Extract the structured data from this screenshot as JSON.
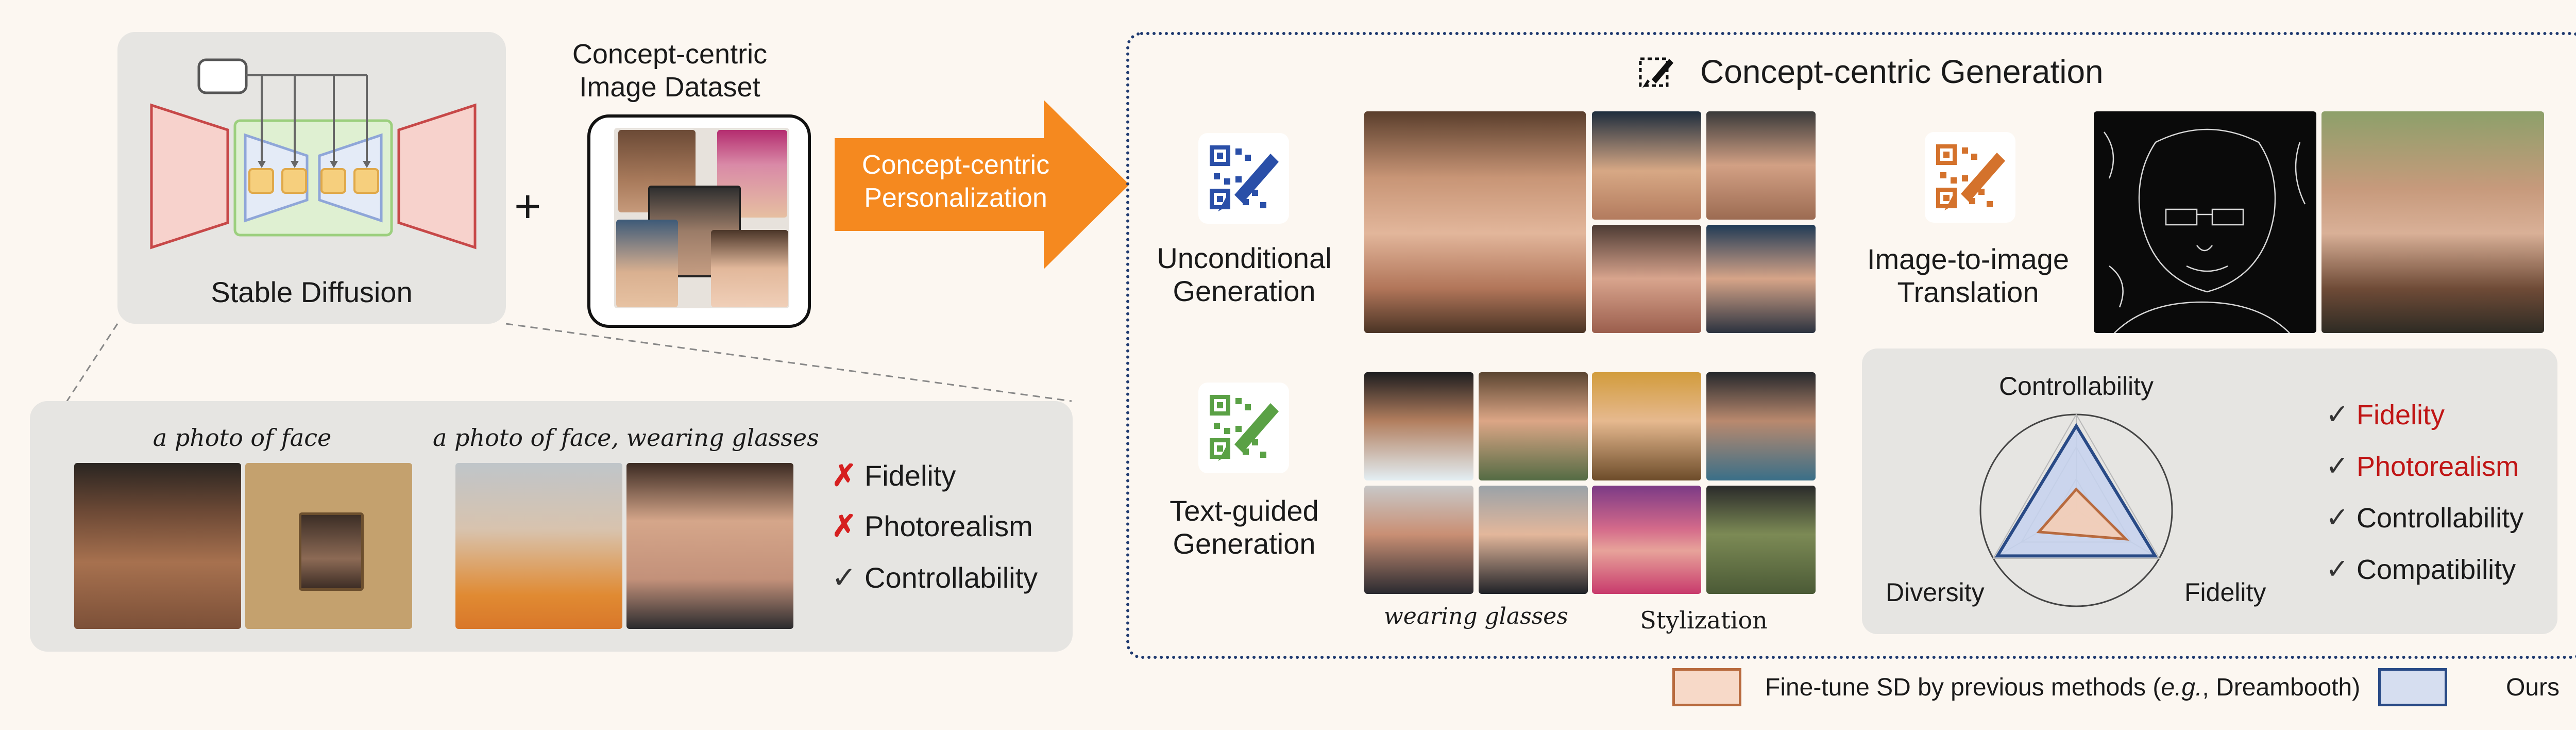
{
  "left": {
    "stable_diffusion_label": "Stable Diffusion",
    "plus_sign": "+",
    "dataset_title_line1": "Concept-centric",
    "dataset_title_line2": "Image Dataset",
    "arrow_line1": "Concept-centric",
    "arrow_line2": "Personalization",
    "bottom_panel": {
      "caption_face": "a photo of face",
      "caption_glasses": "a photo of face, wearing glasses",
      "items": [
        {
          "mark": "✗",
          "label": "Fidelity"
        },
        {
          "mark": "✗",
          "label": "Photorealism"
        },
        {
          "mark": "✓",
          "label": "Controllability"
        }
      ]
    }
  },
  "right": {
    "title": "Concept-centric Generation",
    "unconditional_line1": "Unconditional",
    "unconditional_line2": "Generation",
    "text_guided_line1": "Text-guided",
    "text_guided_line2": "Generation",
    "i2i_line1": "Image-to-image",
    "i2i_line2": "Translation",
    "caption_glasses": "wearing glasses",
    "caption_stylization": "Stylization",
    "radar": {
      "axes": [
        "Controllability",
        "Diversity",
        "Fidelity"
      ],
      "series": [
        {
          "name": "Ours",
          "values": [
            0.88,
            0.95,
            0.95
          ],
          "color": "#294a86"
        },
        {
          "name": "Fine-tune SD by previous methods (e.g., Dreambooth)",
          "values": [
            0.22,
            0.45,
            0.6
          ],
          "color": "#b86a3e"
        }
      ]
    },
    "checks": [
      {
        "mark": "✓",
        "label": "Fidelity",
        "highlight": true
      },
      {
        "mark": "✓",
        "label": "Photorealism",
        "highlight": true
      },
      {
        "mark": "✓",
        "label": "Controllability",
        "highlight": false
      },
      {
        "mark": "✓",
        "label": "Compatibility",
        "highlight": false
      }
    ]
  },
  "legend": {
    "prev_prefix": "Fine-tune SD by previous methods (",
    "prev_eg": "e.g.",
    "prev_suffix": ", Dreambooth)",
    "ours": "Ours"
  },
  "colors": {
    "accent_orange": "#f5891f",
    "red_cross": "#d62020",
    "highlight_red": "#c01515",
    "dotted_border": "#1f3a70",
    "unet_red": "#c74848",
    "unet_green": "#9ccf7e",
    "unet_blue": "#8fa6d8",
    "unet_yellow": "#f6cf7d"
  }
}
